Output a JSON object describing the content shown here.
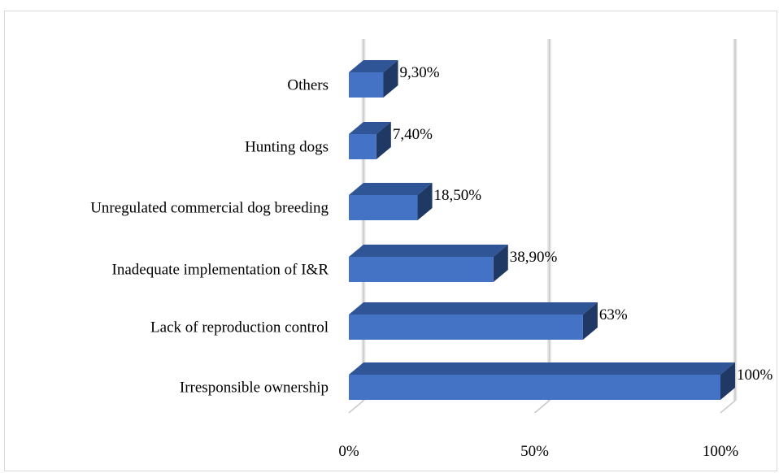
{
  "chart_data": {
    "type": "bar",
    "orientation": "horizontal",
    "style": "3d",
    "categories": [
      "Irresponsible ownership",
      "Lack of reproduction control",
      "Inadequate implementation of I&R",
      "Unregulated commercial dog breeding",
      "Hunting dogs",
      "Others"
    ],
    "values": [
      100,
      63,
      38.9,
      18.5,
      7.4,
      9.3
    ],
    "value_labels": [
      "100%",
      "63%",
      "38,90%",
      "18,50%",
      "7,40%",
      "9,30%"
    ],
    "xlim": [
      0,
      100
    ],
    "x_ticks": [
      0,
      50,
      100
    ],
    "x_tick_labels": [
      "0%",
      "50%",
      "100%"
    ],
    "grid": true,
    "legend": "none",
    "colors": {
      "bar_front": "#4472c4",
      "bar_top": "#2f5597",
      "bar_side": "#203864",
      "gridline": "#c9c9c9",
      "gridline_side": "#e7e7e7"
    }
  }
}
